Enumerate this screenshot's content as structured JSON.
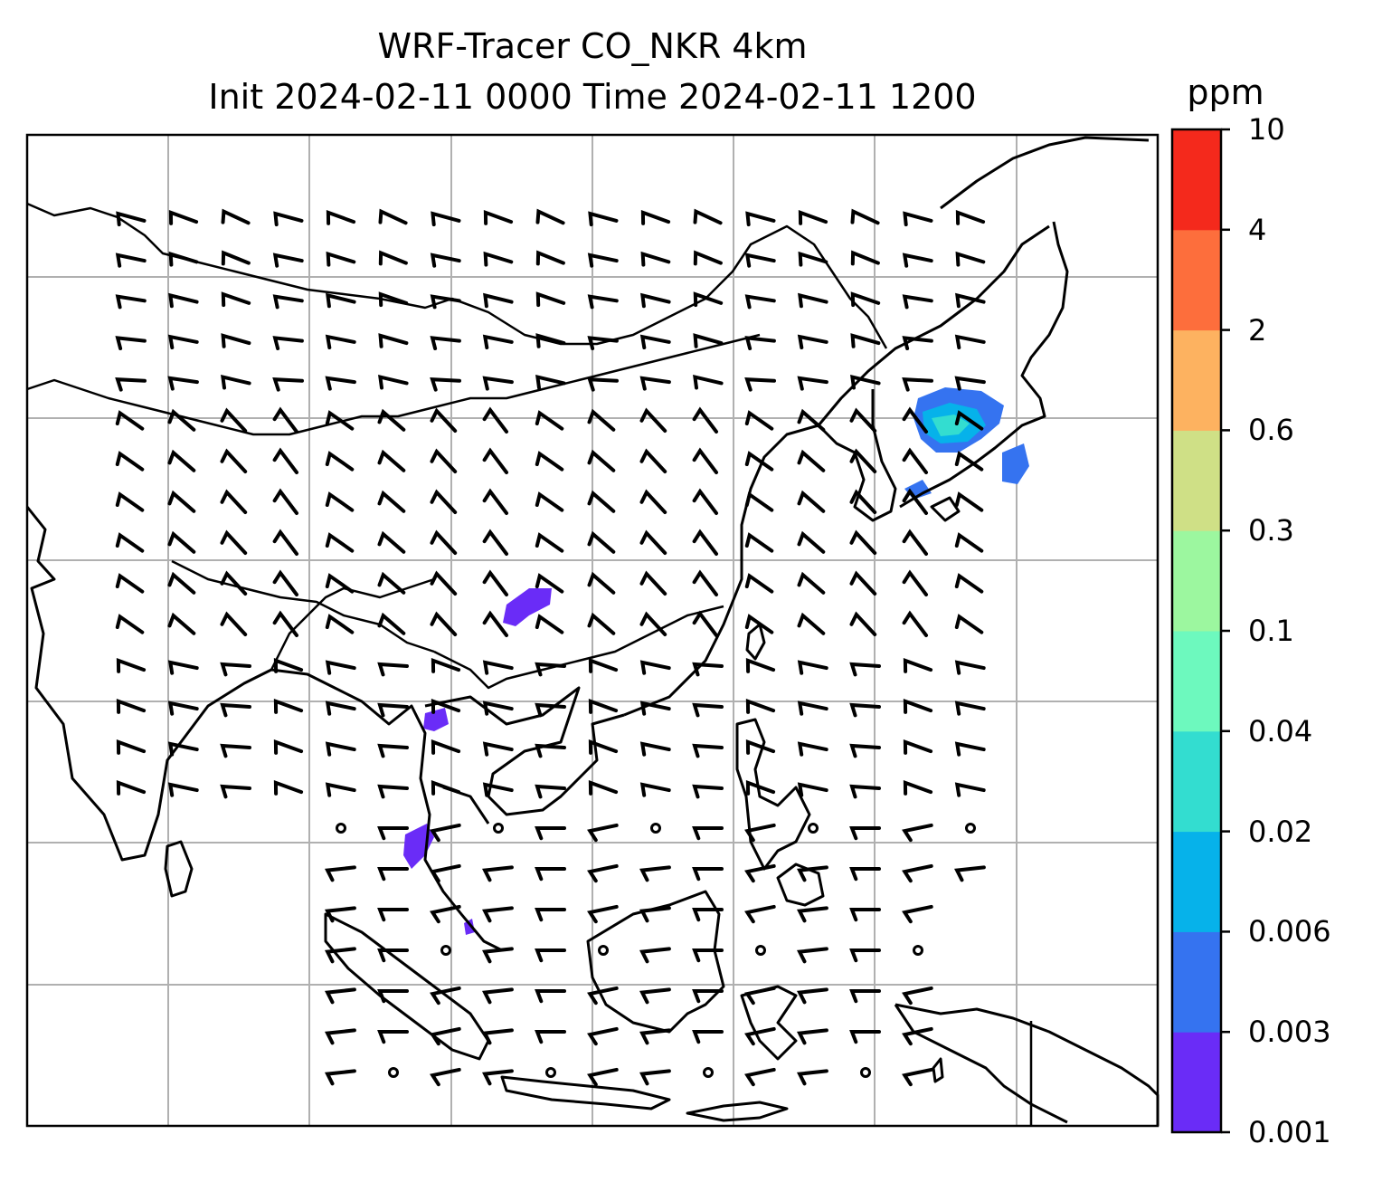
{
  "title_line1": "WRF-Tracer CO_NKR 4km",
  "title_line2": "Init 2024-02-11 0000 Time 2024-02-11 1200",
  "colorbar": {
    "units": "ppm",
    "levels": [
      "0.001",
      "0.003",
      "0.006",
      "0.02",
      "0.04",
      "0.1",
      "0.3",
      "0.6",
      "2",
      "4",
      "10"
    ],
    "colors": [
      "#6a2cf7",
      "#3573f0",
      "#06b2ea",
      "#33ddd0",
      "#6df9be",
      "#9cf79f",
      "#cfe086",
      "#fdb260",
      "#fd6e3c",
      "#f4291c"
    ]
  },
  "map": {
    "grid": "on",
    "features": [
      "coastlines",
      "country-borders",
      "wind-barbs",
      "tracer-concentration-shading"
    ]
  }
}
